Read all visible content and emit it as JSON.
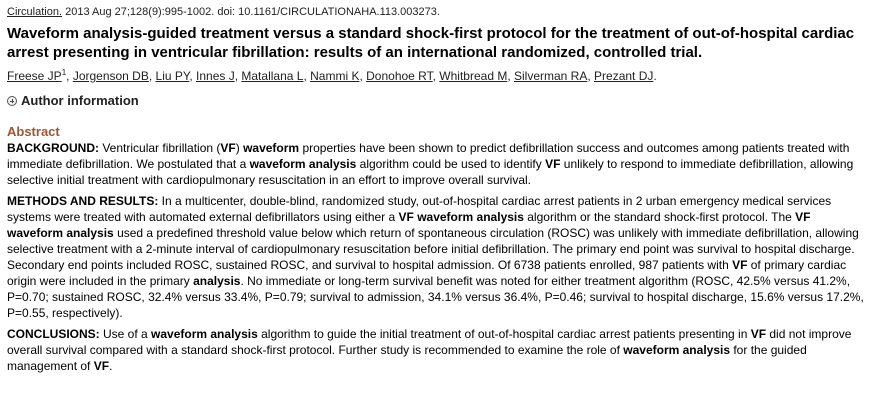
{
  "citation": {
    "journal": "Circulation.",
    "details": " 2013 Aug 27;128(9):995-1002. doi: 10.1161/CIRCULATIONAHA.113.003273."
  },
  "title": "Waveform analysis-guided treatment versus a standard shock-first protocol for the treatment of out-of-hospital cardiac arrest presenting in ventricular fibrillation: results of an international randomized, controlled trial.",
  "authors": [
    {
      "name": "Freese JP",
      "sup": "1"
    },
    {
      "name": "Jorgenson DB"
    },
    {
      "name": "Liu PY"
    },
    {
      "name": "Innes J"
    },
    {
      "name": "Matallana L"
    },
    {
      "name": "Nammi K"
    },
    {
      "name": "Donohoe RT"
    },
    {
      "name": "Whitbread M"
    },
    {
      "name": "Silverman RA"
    },
    {
      "name": "Prezant DJ"
    }
  ],
  "author_info_label": "Author information",
  "abstract_heading": "Abstract",
  "sections": [
    {
      "label": "BACKGROUND:",
      "parts": [
        {
          "t": " Ventricular fibrillation ("
        },
        {
          "t": "VF",
          "b": true
        },
        {
          "t": ") "
        },
        {
          "t": "waveform",
          "b": true
        },
        {
          "t": " properties have been shown to predict defibrillation success and outcomes among patients treated with immediate defibrillation. We postulated that a "
        },
        {
          "t": "waveform analysis",
          "b": true
        },
        {
          "t": " algorithm could be used to identify "
        },
        {
          "t": "VF",
          "b": true
        },
        {
          "t": " unlikely to respond to immediate defibrillation, allowing selective initial treatment with cardiopulmonary resuscitation in an effort to improve overall survival."
        }
      ]
    },
    {
      "label": "METHODS AND RESULTS:",
      "parts": [
        {
          "t": " In a multicenter, double-blind, randomized study, out-of-hospital cardiac arrest patients in 2 urban emergency medical services systems were treated with automated external defibrillators using either a "
        },
        {
          "t": "VF waveform analysis",
          "b": true
        },
        {
          "t": " algorithm or the standard shock-first protocol. The "
        },
        {
          "t": "VF waveform analysis",
          "b": true
        },
        {
          "t": " used a predefined threshold value below which return of spontaneous circulation (ROSC) was unlikely with immediate defibrillation, allowing selective treatment with a 2-minute interval of cardiopulmonary resuscitation before initial defibrillation. The primary end point was survival to hospital discharge. Secondary end points included ROSC, sustained ROSC, and survival to hospital admission. Of 6738 patients enrolled, 987 patients with "
        },
        {
          "t": "VF",
          "b": true
        },
        {
          "t": " of primary cardiac origin were included in the primary "
        },
        {
          "t": "analysis",
          "b": true
        },
        {
          "t": ". No immediate or long-term survival benefit was noted for either treatment algorithm (ROSC, 42.5% versus 41.2%, P=0.70; sustained ROSC, 32.4% versus 33.4%, P=0.79; survival to admission, 34.1% versus 36.4%, P=0.46; survival to hospital discharge, 15.6% versus 17.2%, P=0.55, respectively)."
        }
      ]
    },
    {
      "label": "CONCLUSIONS:",
      "parts": [
        {
          "t": " Use of a "
        },
        {
          "t": "waveform analysis",
          "b": true
        },
        {
          "t": " algorithm to guide the initial treatment of out-of-hospital cardiac arrest patients presenting in "
        },
        {
          "t": "VF",
          "b": true
        },
        {
          "t": " did not improve overall survival compared with a standard shock-first protocol. Further study is recommended to examine the role of "
        },
        {
          "t": "waveform analysis",
          "b": true
        },
        {
          "t": " for the guided management of "
        },
        {
          "t": "VF",
          "b": true
        },
        {
          "t": "."
        }
      ]
    }
  ]
}
